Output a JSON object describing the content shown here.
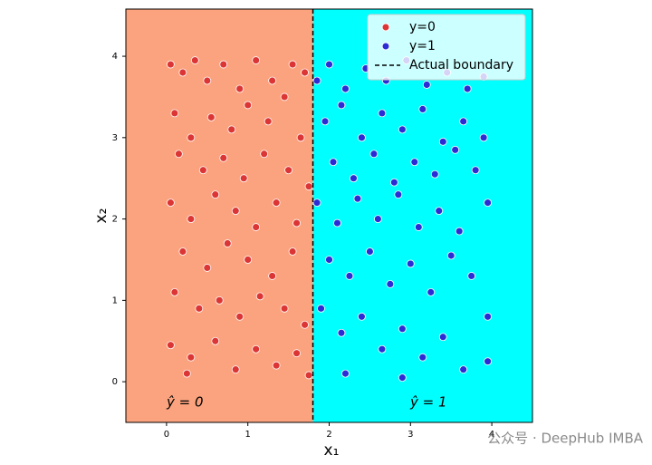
{
  "chart_data": {
    "type": "scatter",
    "xlabel": "x₁",
    "ylabel": "x₂",
    "xlim": [
      -0.5,
      4.5
    ],
    "ylim": [
      -0.5,
      4.58
    ],
    "xticks": [
      0,
      1,
      2,
      3,
      4
    ],
    "yticks": [
      0,
      1,
      2,
      3,
      4
    ],
    "legend": "upper right",
    "boundary": {
      "label": "Actual boundary",
      "x": 1.8,
      "color": "#000000"
    },
    "regions": [
      {
        "label": "ŷ = 0",
        "color": "#fba37e"
      },
      {
        "label": "ŷ = 1",
        "color": "#00ffff"
      }
    ],
    "series": [
      {
        "name": "y=0",
        "color": "#dc3535",
        "x": [
          0.05,
          0.2,
          0.35,
          0.5,
          0.7,
          0.9,
          1.1,
          1.3,
          1.55,
          1.7,
          0.1,
          0.3,
          0.55,
          0.8,
          1.0,
          1.25,
          1.45,
          1.65,
          0.15,
          0.45,
          0.7,
          0.95,
          1.2,
          1.5,
          1.75,
          0.05,
          0.3,
          0.6,
          0.85,
          1.1,
          1.35,
          1.6,
          0.2,
          0.5,
          0.75,
          1.0,
          1.3,
          1.55,
          0.1,
          0.4,
          0.65,
          0.9,
          1.15,
          1.45,
          1.7,
          0.05,
          0.3,
          0.6,
          0.85,
          1.1,
          1.35,
          1.6,
          0.25,
          1.75
        ],
        "values": [
          3.9,
          3.8,
          3.95,
          3.7,
          3.9,
          3.6,
          3.95,
          3.7,
          3.9,
          3.8,
          3.3,
          3.0,
          3.25,
          3.1,
          3.4,
          3.2,
          3.5,
          3.0,
          2.8,
          2.6,
          2.75,
          2.5,
          2.8,
          2.6,
          2.4,
          2.2,
          2.0,
          2.3,
          2.1,
          1.9,
          2.2,
          1.95,
          1.6,
          1.4,
          1.7,
          1.5,
          1.3,
          1.6,
          1.1,
          0.9,
          1.0,
          0.8,
          1.05,
          0.9,
          0.7,
          0.45,
          0.3,
          0.5,
          0.15,
          0.4,
          0.2,
          0.35,
          0.1,
          0.08
        ]
      },
      {
        "name": "y=1",
        "color": "#2c2cd4",
        "x": [
          1.85,
          2.0,
          2.2,
          2.45,
          2.7,
          2.95,
          3.2,
          3.45,
          3.7,
          3.9,
          1.95,
          2.15,
          2.4,
          2.65,
          2.9,
          3.15,
          3.4,
          3.65,
          3.9,
          2.05,
          2.3,
          2.55,
          2.8,
          3.05,
          3.3,
          3.55,
          3.8,
          1.85,
          2.1,
          2.35,
          2.6,
          2.85,
          3.1,
          3.35,
          3.6,
          3.95,
          2.0,
          2.25,
          2.5,
          2.75,
          3.0,
          3.25,
          3.5,
          3.75,
          3.95,
          1.9,
          2.15,
          2.4,
          2.65,
          2.9,
          3.15,
          3.4,
          3.65,
          3.95,
          2.2,
          2.9
        ],
        "values": [
          3.7,
          3.9,
          3.6,
          3.85,
          3.7,
          3.95,
          3.65,
          3.8,
          3.6,
          3.75,
          3.2,
          3.4,
          3.0,
          3.3,
          3.1,
          3.35,
          2.95,
          3.2,
          3.0,
          2.7,
          2.5,
          2.8,
          2.45,
          2.7,
          2.55,
          2.85,
          2.6,
          2.2,
          1.95,
          2.25,
          2.0,
          2.3,
          1.9,
          2.1,
          1.85,
          2.2,
          1.5,
          1.3,
          1.6,
          1.2,
          1.45,
          1.1,
          1.55,
          1.3,
          0.8,
          0.9,
          0.6,
          0.8,
          0.4,
          0.65,
          0.3,
          0.55,
          0.15,
          0.25,
          0.1,
          0.05
        ]
      }
    ]
  },
  "watermark": "公众号 · DeepHub IMBA"
}
